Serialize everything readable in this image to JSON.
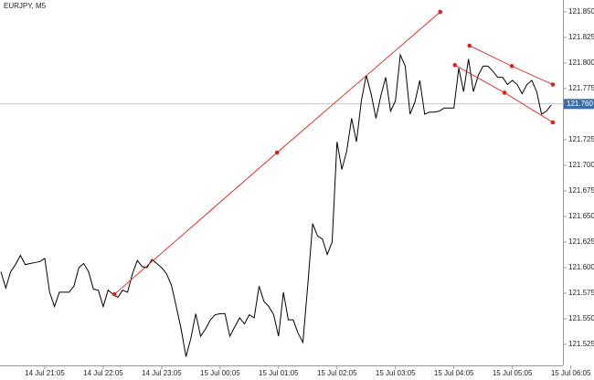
{
  "chart_data": {
    "type": "line",
    "title": "EURJPY, M5",
    "categories": [
      null,
      null,
      null,
      null,
      null,
      null,
      null,
      null,
      null,
      "14 Jul 21:05",
      null,
      null,
      null,
      null,
      null,
      null,
      null,
      null,
      null,
      null,
      null,
      "14 Jul 22:05",
      null,
      null,
      null,
      null,
      null,
      null,
      null,
      null,
      null,
      null,
      null,
      "14 Jul 23:05",
      null,
      null,
      null,
      null,
      null,
      null,
      null,
      null,
      null,
      null,
      null,
      "15 Jul 00:05",
      null,
      null,
      null,
      null,
      null,
      null,
      null,
      null,
      null,
      null,
      null,
      "15 Jul 01:05",
      null,
      null,
      null,
      null,
      null,
      null,
      null,
      null,
      null,
      null,
      null,
      "15 Jul 02:05",
      null,
      null,
      null,
      null,
      null,
      null,
      null,
      null,
      null,
      null,
      null,
      "15 Jul 03:05",
      null,
      null,
      null,
      null,
      null,
      null,
      null,
      null,
      null,
      null,
      null,
      "15 Jul 04:05",
      null,
      null,
      null,
      null,
      null,
      null,
      null,
      null,
      null,
      null,
      null,
      "15 Jul 05:05",
      null,
      null,
      null,
      null,
      null,
      null,
      null,
      null,
      null,
      null,
      null,
      "15 Jul 06:05"
    ],
    "series": [
      {
        "color": "#000000",
        "values": [
          121.596,
          121.58,
          121.596,
          121.603,
          121.612,
          121.603,
          121.604,
          121.605,
          121.606,
          121.609,
          121.576,
          121.562,
          121.576,
          121.576,
          121.576,
          121.582,
          121.6,
          121.604,
          121.596,
          121.579,
          121.578,
          121.562,
          121.578,
          121.574,
          121.571,
          121.578,
          121.576,
          121.594,
          121.607,
          121.601,
          121.6,
          121.608,
          121.604,
          121.6,
          121.594,
          121.583,
          121.562,
          121.54,
          121.513,
          121.531,
          121.555,
          121.533,
          121.54,
          121.549,
          121.554,
          121.555,
          121.555,
          121.533,
          121.542,
          121.551,
          121.545,
          121.554,
          121.551,
          121.582,
          121.567,
          121.562,
          121.554,
          121.533,
          121.576,
          121.549,
          121.549,
          121.536,
          121.527,
          121.583,
          121.643,
          121.631,
          121.628,
          121.613,
          121.625,
          121.723,
          121.696,
          121.714,
          121.746,
          121.723,
          121.763,
          121.788,
          121.77,
          121.746,
          121.768,
          121.786,
          121.753,
          121.763,
          121.808,
          121.797,
          121.75,
          121.762,
          121.783,
          121.75,
          121.752,
          121.752,
          121.753,
          121.756,
          121.756,
          121.756,
          121.795,
          121.772,
          121.804,
          121.772,
          121.788,
          121.797,
          121.797,
          121.792,
          121.786,
          121.786,
          121.779,
          121.783,
          121.779,
          121.77,
          121.779,
          121.783,
          121.772,
          121.75,
          121.753,
          121.759,
          null,
          null,
          null,
          null
        ]
      }
    ],
    "ylim": [
      121.5045,
      121.8616
    ],
    "yticks": [
      121.525,
      {
        "value": 121.55,
        "label": "121.550"
      },
      121.575,
      {
        "value": 121.6,
        "label": "121.600"
      },
      121.625,
      {
        "value": 121.65,
        "label": "121.650"
      },
      121.675,
      {
        "value": 121.7,
        "label": "121.700"
      },
      121.725,
      121.775,
      {
        "value": 121.8,
        "label": "121.800"
      },
      121.825,
      {
        "value": 121.85,
        "label": "121.850"
      }
    ],
    "last_price": {
      "value": 121.76,
      "label": "121.760",
      "color": "#3d6fa6"
    },
    "trendlines": [
      {
        "color": "#e02020",
        "x": [
          23.3,
          56.7,
          90.2
        ],
        "y": [
          121.574,
          121.7125,
          121.85
        ]
      },
      {
        "color": "#e02020",
        "x": [
          96.2,
          104.9,
          113.3
        ],
        "y": [
          121.817,
          121.797,
          121.779
        ]
      },
      {
        "color": "#e02020",
        "x": [
          93.2,
          103.4,
          113.3
        ],
        "y": [
          121.798,
          121.771,
          121.742
        ]
      }
    ]
  }
}
